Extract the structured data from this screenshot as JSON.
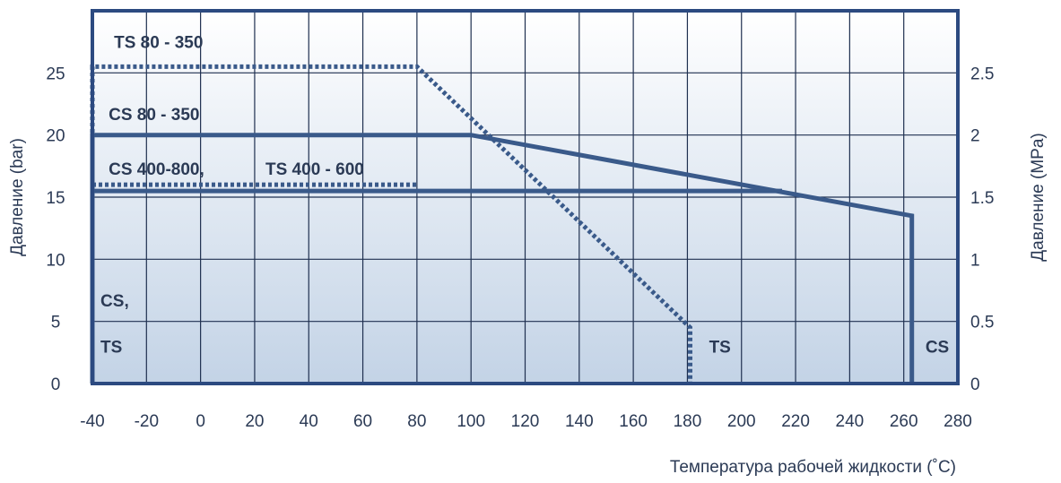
{
  "chart_data": {
    "type": "line",
    "xlabel": "Температура рабочей жидкости (˚C)",
    "ylabel_left": "Давление (bar)",
    "ylabel_right": "Давление (MPa)",
    "xlim": [
      -40,
      280
    ],
    "ylim": [
      0,
      30
    ],
    "x_ticks": [
      "-40",
      "-20",
      "0",
      "20",
      "40",
      "60",
      "80",
      "100",
      "120",
      "140",
      "160",
      "180",
      "200",
      "220",
      "240",
      "260",
      "280"
    ],
    "y_ticks_left": [
      "0",
      "5",
      "10",
      "15",
      "20",
      "25"
    ],
    "y_ticks_right": [
      "0",
      "0.5",
      "1",
      "1.5",
      "2",
      "2.5"
    ],
    "grid": true,
    "colors": {
      "line": "#3a5a8a",
      "grid": "#1f3050",
      "frame": "#2c4a80",
      "bg_top": "#ffffff",
      "bg_bottom": "#c3d3e6"
    },
    "series": [
      {
        "style": "dashed",
        "points": [
          [
            -40,
            0
          ],
          [
            -40,
            25.5
          ],
          [
            80,
            25.5
          ],
          [
            181,
            4.5
          ],
          [
            181,
            0
          ]
        ]
      },
      {
        "style": "solid",
        "points": [
          [
            -40,
            0
          ],
          [
            -40,
            20
          ],
          [
            100,
            20
          ],
          [
            263,
            13.5
          ],
          [
            263,
            0
          ]
        ]
      },
      {
        "style": "dashed",
        "points": [
          [
            -40,
            16
          ],
          [
            80,
            16
          ]
        ]
      },
      {
        "style": "solid",
        "points": [
          [
            -40,
            15.5
          ],
          [
            215,
            15.5
          ]
        ]
      }
    ],
    "annotations": [
      {
        "text": "TS 80 - 350",
        "x": -32,
        "y": 27
      },
      {
        "text": "CS 80 - 350",
        "x": -34,
        "y": 21.2
      },
      {
        "text": "CS 400-800,",
        "x": -34,
        "y": 16.8
      },
      {
        "text": "TS 400 - 600",
        "x": 24,
        "y": 16.8
      },
      {
        "text": "CS,",
        "x": -37,
        "y": 6.2
      },
      {
        "text": "TS",
        "x": -37,
        "y": 2.5
      },
      {
        "text": "TS",
        "x": 188,
        "y": 2.5
      },
      {
        "text": "CS",
        "x": 268,
        "y": 2.5
      }
    ]
  }
}
